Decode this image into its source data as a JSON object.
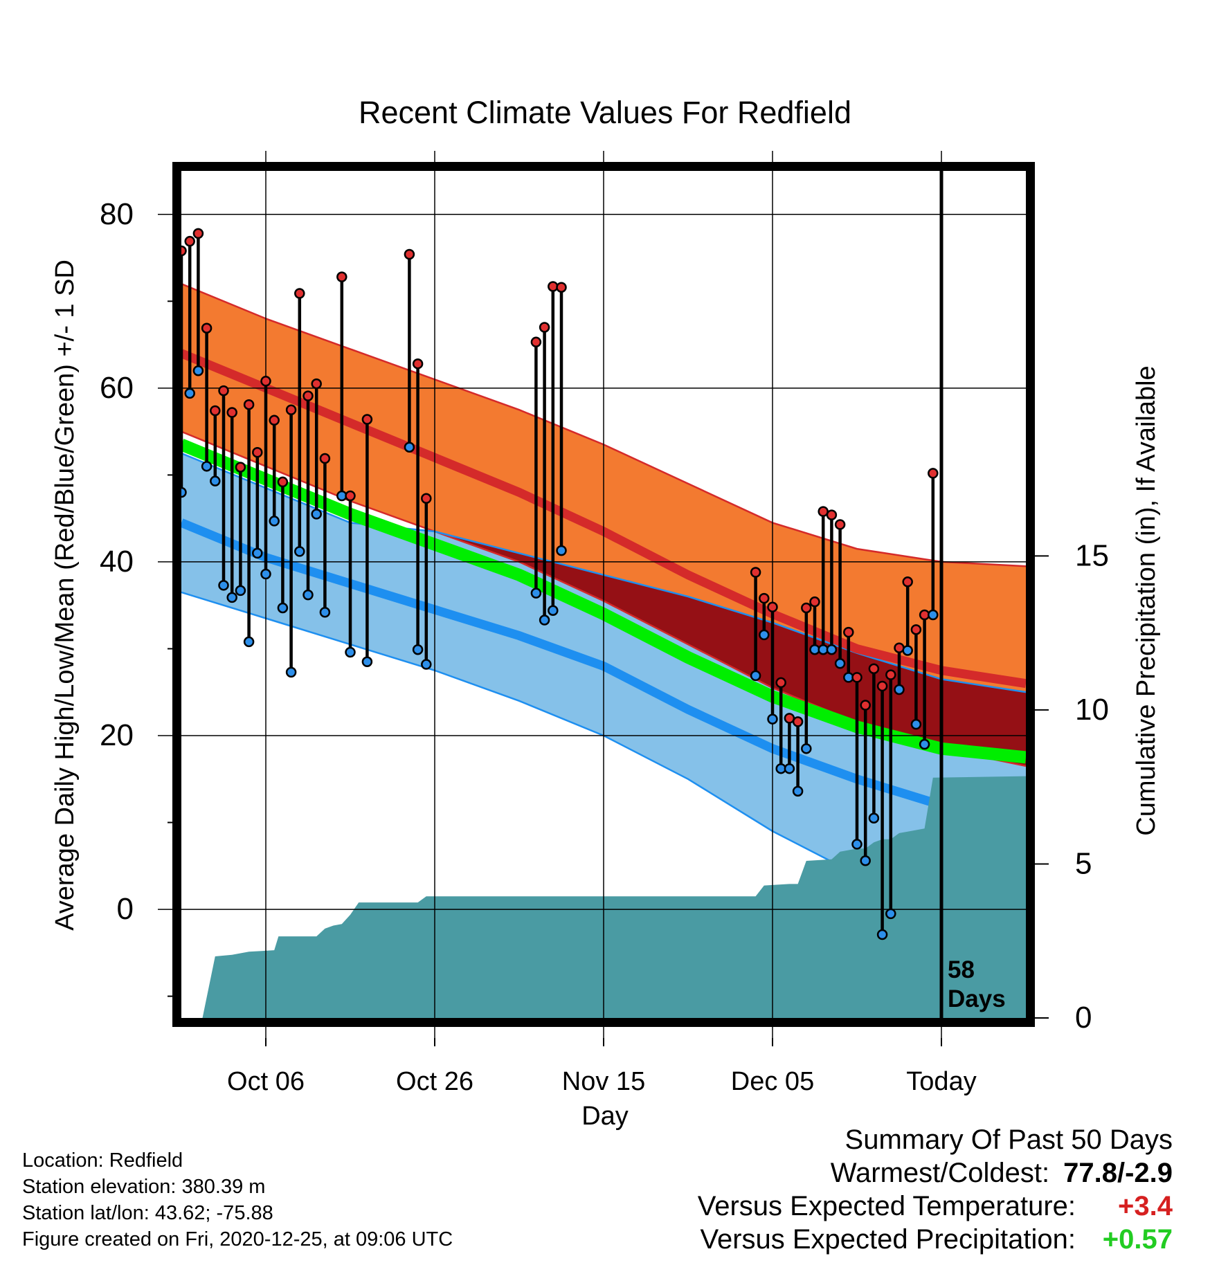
{
  "chart_data": {
    "type": "line",
    "title": "Recent Climate Values For Redfield",
    "xlabel": "Day",
    "ylabel": "Average Daily High/Low/Mean (Red/Blue/Green) +/- 1 SD",
    "y2label": "Cumulative Precipitation (in), If Available",
    "x_tick_labels": [
      "Oct 06",
      "Oct 26",
      "Nov 15",
      "Dec 05",
      "Today"
    ],
    "x_tick_days": [
      10,
      30,
      50,
      70,
      90
    ],
    "xlim": [
      0,
      100
    ],
    "y_ticks": [
      0,
      20,
      40,
      60,
      80
    ],
    "ylim": [
      -12.5,
      85
    ],
    "y2_ticks": [
      0,
      5,
      10,
      15
    ],
    "y2lim": [
      0,
      27.5
    ],
    "grid": true,
    "today_day": 90,
    "today_label": "58\nDays",
    "colors": {
      "high_band": "#f37a30",
      "high_mean": "#d42a2a",
      "low_band": "#85c1e9",
      "low_mean": "#1e8ff0",
      "mean_line": "#00ee00",
      "overlap": "#951015",
      "precip": "#4a9ba3",
      "high_marker": "#e03030",
      "low_marker": "#2d8fea"
    },
    "normal_high_upper": [
      [
        0,
        72
      ],
      [
        10,
        68
      ],
      [
        20,
        64.5
      ],
      [
        30,
        61
      ],
      [
        40,
        57.5
      ],
      [
        50,
        53.5
      ],
      [
        60,
        49
      ],
      [
        70,
        44.5
      ],
      [
        80,
        41.5
      ],
      [
        90,
        40
      ],
      [
        100,
        39.5
      ]
    ],
    "normal_high_mean": [
      [
        0,
        64
      ],
      [
        10,
        60
      ],
      [
        20,
        56
      ],
      [
        30,
        52
      ],
      [
        40,
        48
      ],
      [
        50,
        43.5
      ],
      [
        60,
        38.5
      ],
      [
        70,
        34
      ],
      [
        80,
        30
      ],
      [
        90,
        27.5
      ],
      [
        100,
        26
      ]
    ],
    "normal_high_lower": [
      [
        0,
        55
      ],
      [
        10,
        51
      ],
      [
        20,
        47
      ],
      [
        30,
        43.5
      ],
      [
        40,
        40
      ],
      [
        50,
        35.5
      ],
      [
        60,
        30.5
      ],
      [
        70,
        25.5
      ],
      [
        80,
        21.5
      ],
      [
        90,
        18.5
      ],
      [
        100,
        16.5
      ]
    ],
    "normal_mean": [
      [
        0,
        53.5
      ],
      [
        10,
        49.5
      ],
      [
        20,
        45.5
      ],
      [
        30,
        42
      ],
      [
        40,
        38.5
      ],
      [
        50,
        34
      ],
      [
        60,
        29
      ],
      [
        70,
        24.5
      ],
      [
        80,
        21
      ],
      [
        90,
        18.5
      ],
      [
        100,
        17.5
      ]
    ],
    "normal_low_upper": [
      [
        0,
        52.5
      ],
      [
        10,
        48.5
      ],
      [
        20,
        44.5
      ],
      [
        30,
        43.5
      ],
      [
        40,
        41
      ],
      [
        50,
        38.5
      ],
      [
        60,
        36
      ],
      [
        70,
        33
      ],
      [
        80,
        29.5
      ],
      [
        90,
        26.5
      ],
      [
        100,
        25
      ]
    ],
    "normal_low_mean": [
      [
        0,
        44.5
      ],
      [
        10,
        40.5
      ],
      [
        20,
        37.5
      ],
      [
        30,
        34.5
      ],
      [
        40,
        31.5
      ],
      [
        50,
        28
      ],
      [
        60,
        23
      ],
      [
        70,
        18.5
      ],
      [
        80,
        15
      ],
      [
        90,
        12
      ],
      [
        100,
        10.5
      ]
    ],
    "normal_low_lower": [
      [
        0,
        36.5
      ],
      [
        10,
        33.5
      ],
      [
        20,
        30.5
      ],
      [
        30,
        27.5
      ],
      [
        40,
        24
      ],
      [
        50,
        20
      ],
      [
        60,
        15
      ],
      [
        70,
        9
      ],
      [
        80,
        4
      ],
      [
        90,
        -1
      ],
      [
        100,
        -2.5
      ]
    ],
    "daily": [
      {
        "day": 0,
        "high": 75.8,
        "low": 48.0
      },
      {
        "day": 1,
        "high": 76.9,
        "low": 59.4
      },
      {
        "day": 2,
        "high": 77.8,
        "low": 62.0
      },
      {
        "day": 3,
        "high": 66.9,
        "low": 51.0
      },
      {
        "day": 4,
        "high": 57.4,
        "low": 49.3
      },
      {
        "day": 5,
        "high": 59.7,
        "low": 37.3
      },
      {
        "day": 6,
        "high": 57.2,
        "low": 35.9
      },
      {
        "day": 7,
        "high": 50.9,
        "low": 36.7
      },
      {
        "day": 8,
        "high": 58.1,
        "low": 30.8
      },
      {
        "day": 9,
        "high": 52.6,
        "low": 41.0
      },
      {
        "day": 10,
        "high": 60.8,
        "low": 38.6
      },
      {
        "day": 11,
        "high": 56.3,
        "low": 44.7
      },
      {
        "day": 12,
        "high": 49.2,
        "low": 34.7
      },
      {
        "day": 13,
        "high": 57.5,
        "low": 27.3
      },
      {
        "day": 14,
        "high": 70.9,
        "low": 41.2
      },
      {
        "day": 15,
        "high": 59.1,
        "low": 36.2
      },
      {
        "day": 16,
        "high": 60.5,
        "low": 45.5
      },
      {
        "day": 17,
        "high": 51.9,
        "low": 34.2
      },
      {
        "day": 19,
        "high": 72.8,
        "low": 47.6
      },
      {
        "day": 20,
        "high": 47.6,
        "low": 29.6
      },
      {
        "day": 22,
        "high": 56.4,
        "low": 28.5
      },
      {
        "day": 27,
        "high": 75.4,
        "low": 53.2
      },
      {
        "day": 28,
        "high": 62.8,
        "low": 29.9
      },
      {
        "day": 29,
        "high": 47.3,
        "low": 28.2
      },
      {
        "day": 42,
        "high": 65.3,
        "low": 36.4
      },
      {
        "day": 43,
        "high": 67.0,
        "low": 33.3
      },
      {
        "day": 44,
        "high": 71.7,
        "low": 34.4
      },
      {
        "day": 45,
        "high": 71.6,
        "low": 41.3
      },
      {
        "day": 68,
        "high": 38.8,
        "low": 26.9
      },
      {
        "day": 69,
        "high": 35.8,
        "low": 31.6
      },
      {
        "day": 70,
        "high": 34.8,
        "low": 21.9
      },
      {
        "day": 71,
        "high": 26.1,
        "low": 16.2
      },
      {
        "day": 72,
        "high": 22.0,
        "low": 16.2
      },
      {
        "day": 73,
        "high": 21.6,
        "low": 13.6
      },
      {
        "day": 74,
        "high": 34.7,
        "low": 18.5
      },
      {
        "day": 75,
        "high": 35.4,
        "low": 29.9
      },
      {
        "day": 76,
        "high": 45.8,
        "low": 29.9
      },
      {
        "day": 77,
        "high": 45.4,
        "low": 29.9
      },
      {
        "day": 78,
        "high": 44.3,
        "low": 28.3
      },
      {
        "day": 79,
        "high": 31.9,
        "low": 26.7
      },
      {
        "day": 80,
        "high": 26.7,
        "low": 7.5
      },
      {
        "day": 81,
        "high": 23.5,
        "low": 5.6
      },
      {
        "day": 82,
        "high": 27.7,
        "low": 10.5
      },
      {
        "day": 83,
        "high": 25.7,
        "low": -2.9
      },
      {
        "day": 84,
        "high": 27.0,
        "low": -0.5
      },
      {
        "day": 85,
        "high": 30.1,
        "low": 25.3
      },
      {
        "day": 86,
        "high": 37.7,
        "low": 29.8
      },
      {
        "day": 87,
        "high": 32.2,
        "low": 21.3
      },
      {
        "day": 88,
        "high": 33.9,
        "low": 19.0
      },
      {
        "day": 89,
        "high": 50.2,
        "low": 33.9
      }
    ],
    "cumulative_precip": [
      [
        0,
        0
      ],
      [
        2.5,
        0
      ],
      [
        4,
        2.0
      ],
      [
        6,
        2.05
      ],
      [
        8,
        2.15
      ],
      [
        11,
        2.2
      ],
      [
        11.5,
        2.65
      ],
      [
        16,
        2.65
      ],
      [
        17,
        2.9
      ],
      [
        18,
        3.0
      ],
      [
        19,
        3.05
      ],
      [
        20,
        3.35
      ],
      [
        21,
        3.75
      ],
      [
        28,
        3.75
      ],
      [
        29,
        3.95
      ],
      [
        68,
        3.95
      ],
      [
        69,
        4.3
      ],
      [
        72,
        4.35
      ],
      [
        73,
        4.35
      ],
      [
        74,
        5.1
      ],
      [
        77,
        5.15
      ],
      [
        78,
        5.4
      ],
      [
        80,
        5.5
      ],
      [
        81,
        5.5
      ],
      [
        82,
        5.7
      ],
      [
        83,
        5.8
      ],
      [
        84,
        5.8
      ],
      [
        85,
        6.0
      ],
      [
        86,
        6.05
      ],
      [
        88,
        6.15
      ],
      [
        89,
        7.8
      ],
      [
        100,
        7.85
      ]
    ]
  },
  "footer": {
    "location": "Location: Redfield",
    "elevation": "Station elevation: 380.39 m",
    "latlon": "Station lat/lon: 43.62; -75.88",
    "created": "Figure created on Fri, 2020-12-25, at 09:06 UTC"
  },
  "summary": {
    "heading": "Summary Of Past 50 Days",
    "warmest_label": "Warmest/Coldest:",
    "warmest_value": "77.8/-2.9",
    "temp_label": "Versus Expected Temperature:",
    "temp_value": "+3.4",
    "temp_color": "#d62020",
    "precip_label": "Versus Expected Precipitation:",
    "precip_value": "+0.57",
    "precip_color": "#22cc22"
  }
}
